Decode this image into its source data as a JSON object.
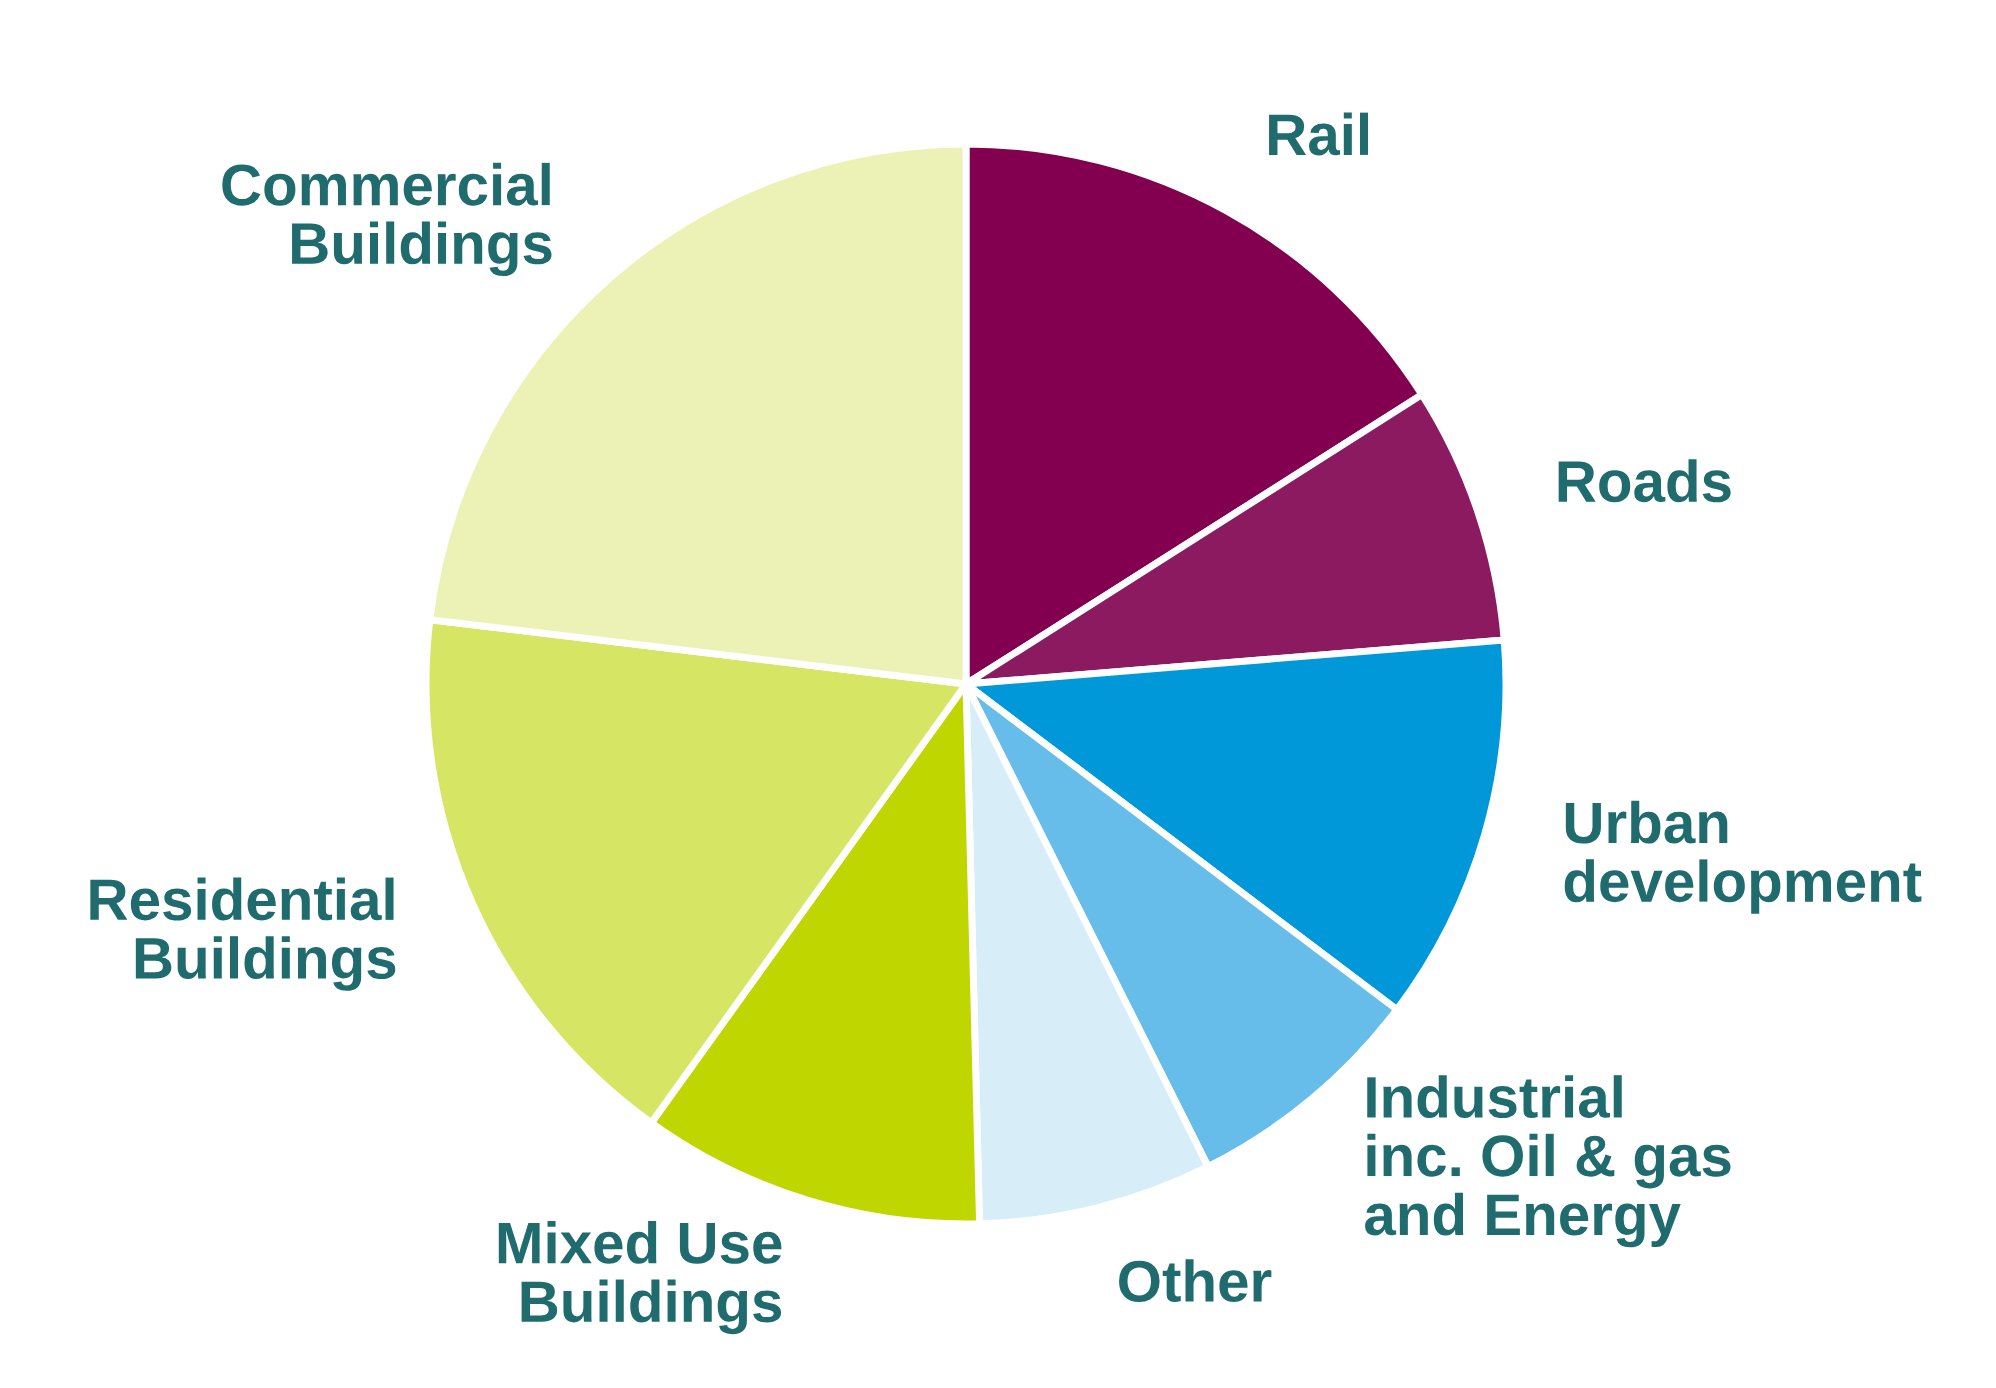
{
  "chart_data": {
    "type": "pie",
    "categories": [
      "Rail",
      "Roads",
      "Urban\ndevelopment",
      "Industrial\ninc. Oil & gas\nand Energy",
      "Other",
      "Mixed Use\nBuildings",
      "Residential\nBuildings",
      "Commercial\nBuildings"
    ],
    "values": [
      16,
      7.7,
      11.6,
      7.3,
      7,
      10.3,
      17,
      23.1
    ],
    "colors": [
      "#82004f",
      "#8c1a60",
      "#0098d8",
      "#66bde9",
      "#d7eef9",
      "#bfd600",
      "#d6e563",
      "#ecf2b5"
    ]
  }
}
